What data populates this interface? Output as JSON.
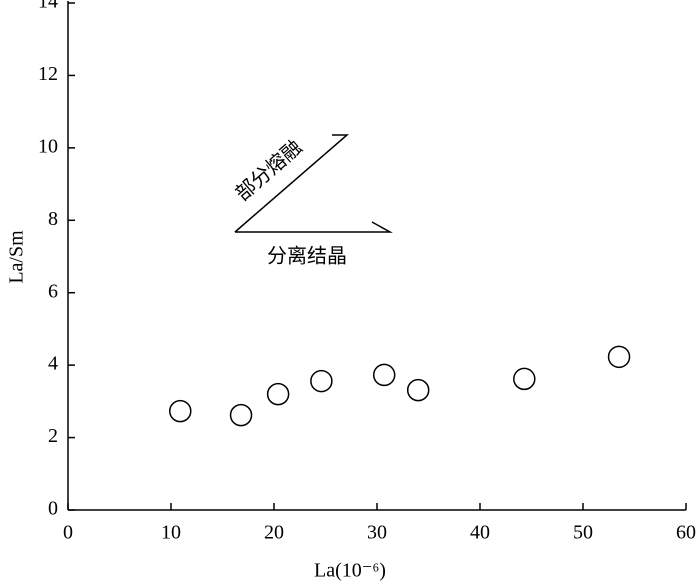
{
  "chart_data": {
    "type": "scatter",
    "xlabel": "La(10⁻⁶)",
    "ylabel": "La/Sm",
    "x": [
      10.9,
      16.8,
      20.4,
      24.6,
      30.7,
      34.0,
      44.3,
      53.5
    ],
    "values": [
      2.73,
      2.62,
      3.2,
      3.56,
      3.73,
      3.31,
      3.62,
      4.23
    ],
    "xlim": [
      0,
      60
    ],
    "xticks": [
      0,
      10,
      20,
      30,
      40,
      50,
      60
    ],
    "ylim": [
      0,
      14
    ],
    "yticks": [
      0,
      2,
      4,
      6,
      8,
      10,
      12,
      14
    ],
    "marker_color": "#000000",
    "annotations": [
      "部分熔融",
      "分离结晶"
    ]
  }
}
